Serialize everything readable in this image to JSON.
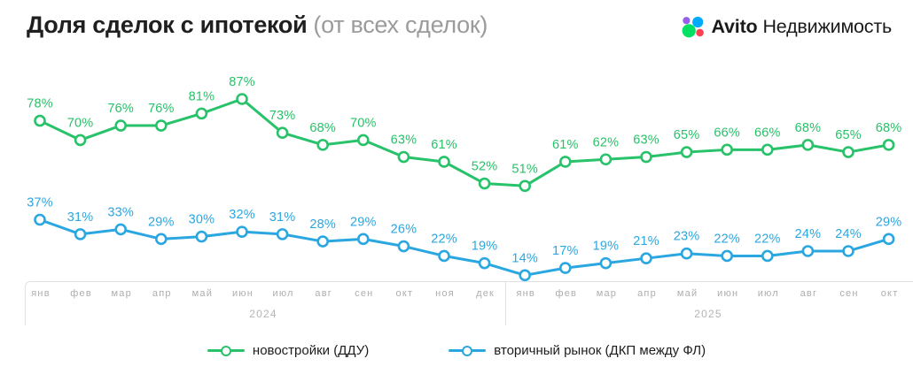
{
  "title": {
    "main": "Доля сделок с ипотекой",
    "sub": "(от всех сделок)"
  },
  "brand": {
    "name": "Avito",
    "product": "Недвижимость",
    "logo_dot_colors": {
      "top_left": "#965eeb",
      "top_right": "#00aaff",
      "bottom_left": "#04e061",
      "bottom_right": "#ff4053"
    }
  },
  "chart_data": {
    "type": "line",
    "value_suffix": "%",
    "ylim": [
      0,
      100
    ],
    "grid": false,
    "legend_position": "bottom",
    "x_groups": [
      {
        "year": "2024",
        "months": [
          "янв",
          "фев",
          "мар",
          "апр",
          "май",
          "июн",
          "июл",
          "авг",
          "сен",
          "окт",
          "ноя",
          "дек"
        ]
      },
      {
        "year": "2025",
        "months": [
          "янв",
          "фев",
          "мар",
          "апр",
          "май",
          "июн",
          "июл",
          "авг",
          "сен",
          "окт"
        ]
      }
    ],
    "series": [
      {
        "name": "новостройки (ДДУ)",
        "color": "#27c269",
        "values": [
          78,
          70,
          76,
          76,
          81,
          87,
          73,
          68,
          70,
          63,
          61,
          52,
          51,
          61,
          62,
          63,
          65,
          66,
          66,
          68,
          65,
          68
        ]
      },
      {
        "name": "вторичный рынок (ДКП между ФЛ)",
        "color": "#2aa7e1",
        "values": [
          37,
          31,
          33,
          29,
          30,
          32,
          31,
          28,
          29,
          26,
          22,
          19,
          14,
          17,
          19,
          21,
          23,
          22,
          22,
          24,
          24,
          29
        ]
      }
    ]
  }
}
